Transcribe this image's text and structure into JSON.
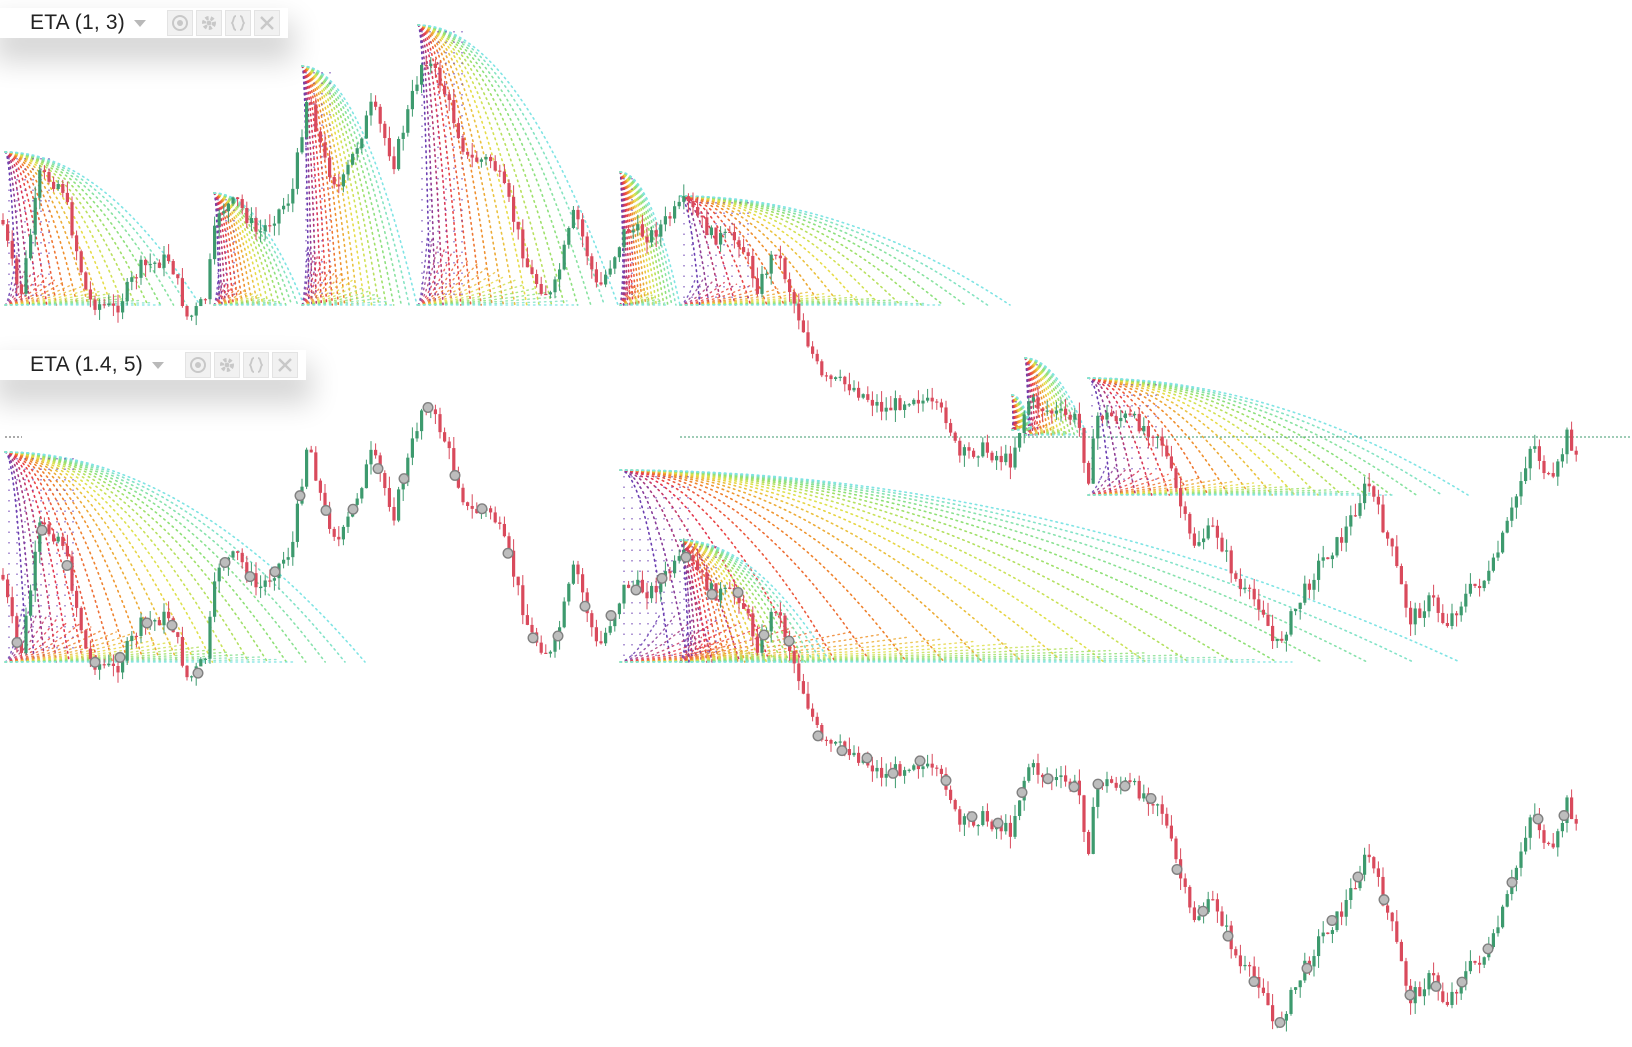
{
  "indicators": [
    {
      "label": "ETA (1, 3)",
      "caret": "dropdown-caret-icon",
      "buttons": [
        "eye-icon",
        "gear-icon",
        "braces-icon",
        "close-icon"
      ]
    },
    {
      "label": "ETA (1.4, 5)",
      "caret": "dropdown-caret-icon",
      "buttons": [
        "eye-icon",
        "gear-icon",
        "braces-icon",
        "close-icon"
      ]
    }
  ],
  "colors": {
    "background": "#ffffff",
    "candle_up": "#3d9a6e",
    "candle_down": "#d94a5c",
    "dotted_level": "#3d9a6e",
    "touch_marker": "#bdbdbd",
    "fan_gradient": [
      "#6a3db0",
      "#e8354a",
      "#f08a2a",
      "#e6e14a",
      "#8fe070",
      "#7fe4e4"
    ]
  },
  "chart_data": [
    {
      "type": "candlestick",
      "panel": "upper",
      "series": [
        {
          "name": "ETA (1, 3)",
          "kind": "parabolic-time-price-fans",
          "overlay": true,
          "anchors_count": 9
        }
      ],
      "grid": false,
      "legend": "top-left"
    },
    {
      "type": "candlestick",
      "panel": "lower",
      "series": [
        {
          "name": "ETA (1.4, 5)",
          "kind": "parabolic-time-price-fans",
          "overlay": true,
          "anchors_count": 3,
          "touch_markers": true
        }
      ],
      "grid": false,
      "legend": "top-left"
    }
  ]
}
